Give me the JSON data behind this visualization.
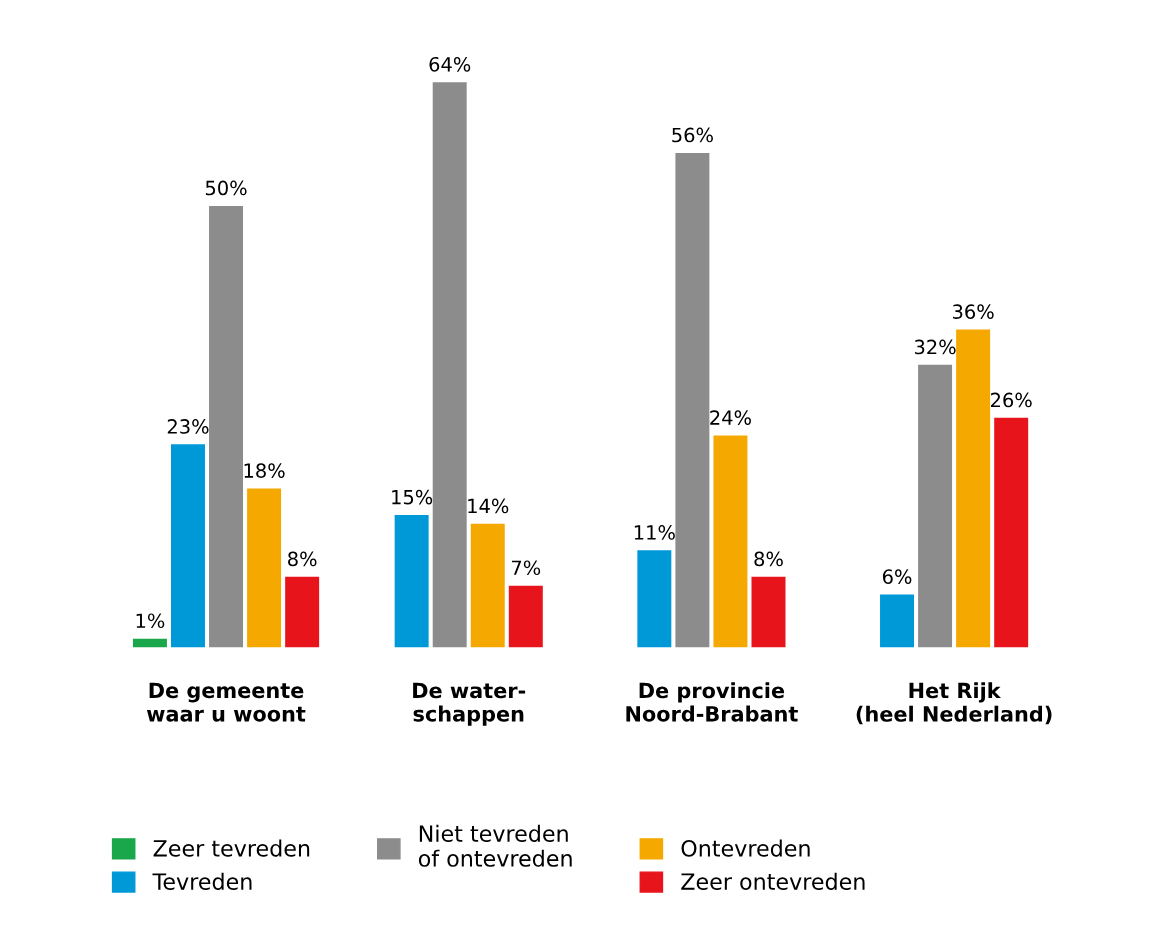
{
  "chart_data": {
    "type": "bar",
    "categories": [
      "De gemeente\nwaar u woont",
      "De water-\nschappen",
      "De provincie\nNoord-Brabant",
      "Het Rijk\n(heel Nederland)"
    ],
    "series": [
      {
        "name": "Zeer tevreden",
        "color": "#1aa64a",
        "values": [
          1,
          null,
          null,
          null
        ],
        "value_labels": [
          "1%",
          null,
          null,
          null
        ]
      },
      {
        "name": "Tevreden",
        "color": "#0099d8",
        "values": [
          23,
          15,
          11,
          6
        ],
        "value_labels": [
          "23%",
          "15%",
          "11%",
          "6%"
        ]
      },
      {
        "name": "Niet tevreden\nof ontevreden",
        "color": "#8c8c8c",
        "values": [
          50,
          64,
          56,
          32
        ],
        "value_labels": [
          "50%",
          "64%",
          "56%",
          "32%"
        ]
      },
      {
        "name": "Ontevreden",
        "color": "#f5a800",
        "values": [
          18,
          14,
          24,
          36
        ],
        "value_labels": [
          "18%",
          "14%",
          "24%",
          "36%"
        ]
      },
      {
        "name": "Zeer ontevreden",
        "color": "#e8141b",
        "values": [
          8,
          7,
          8,
          26
        ],
        "value_labels": [
          "8%",
          "7%",
          "8%",
          "26%"
        ]
      }
    ],
    "legend": "bottom"
  }
}
